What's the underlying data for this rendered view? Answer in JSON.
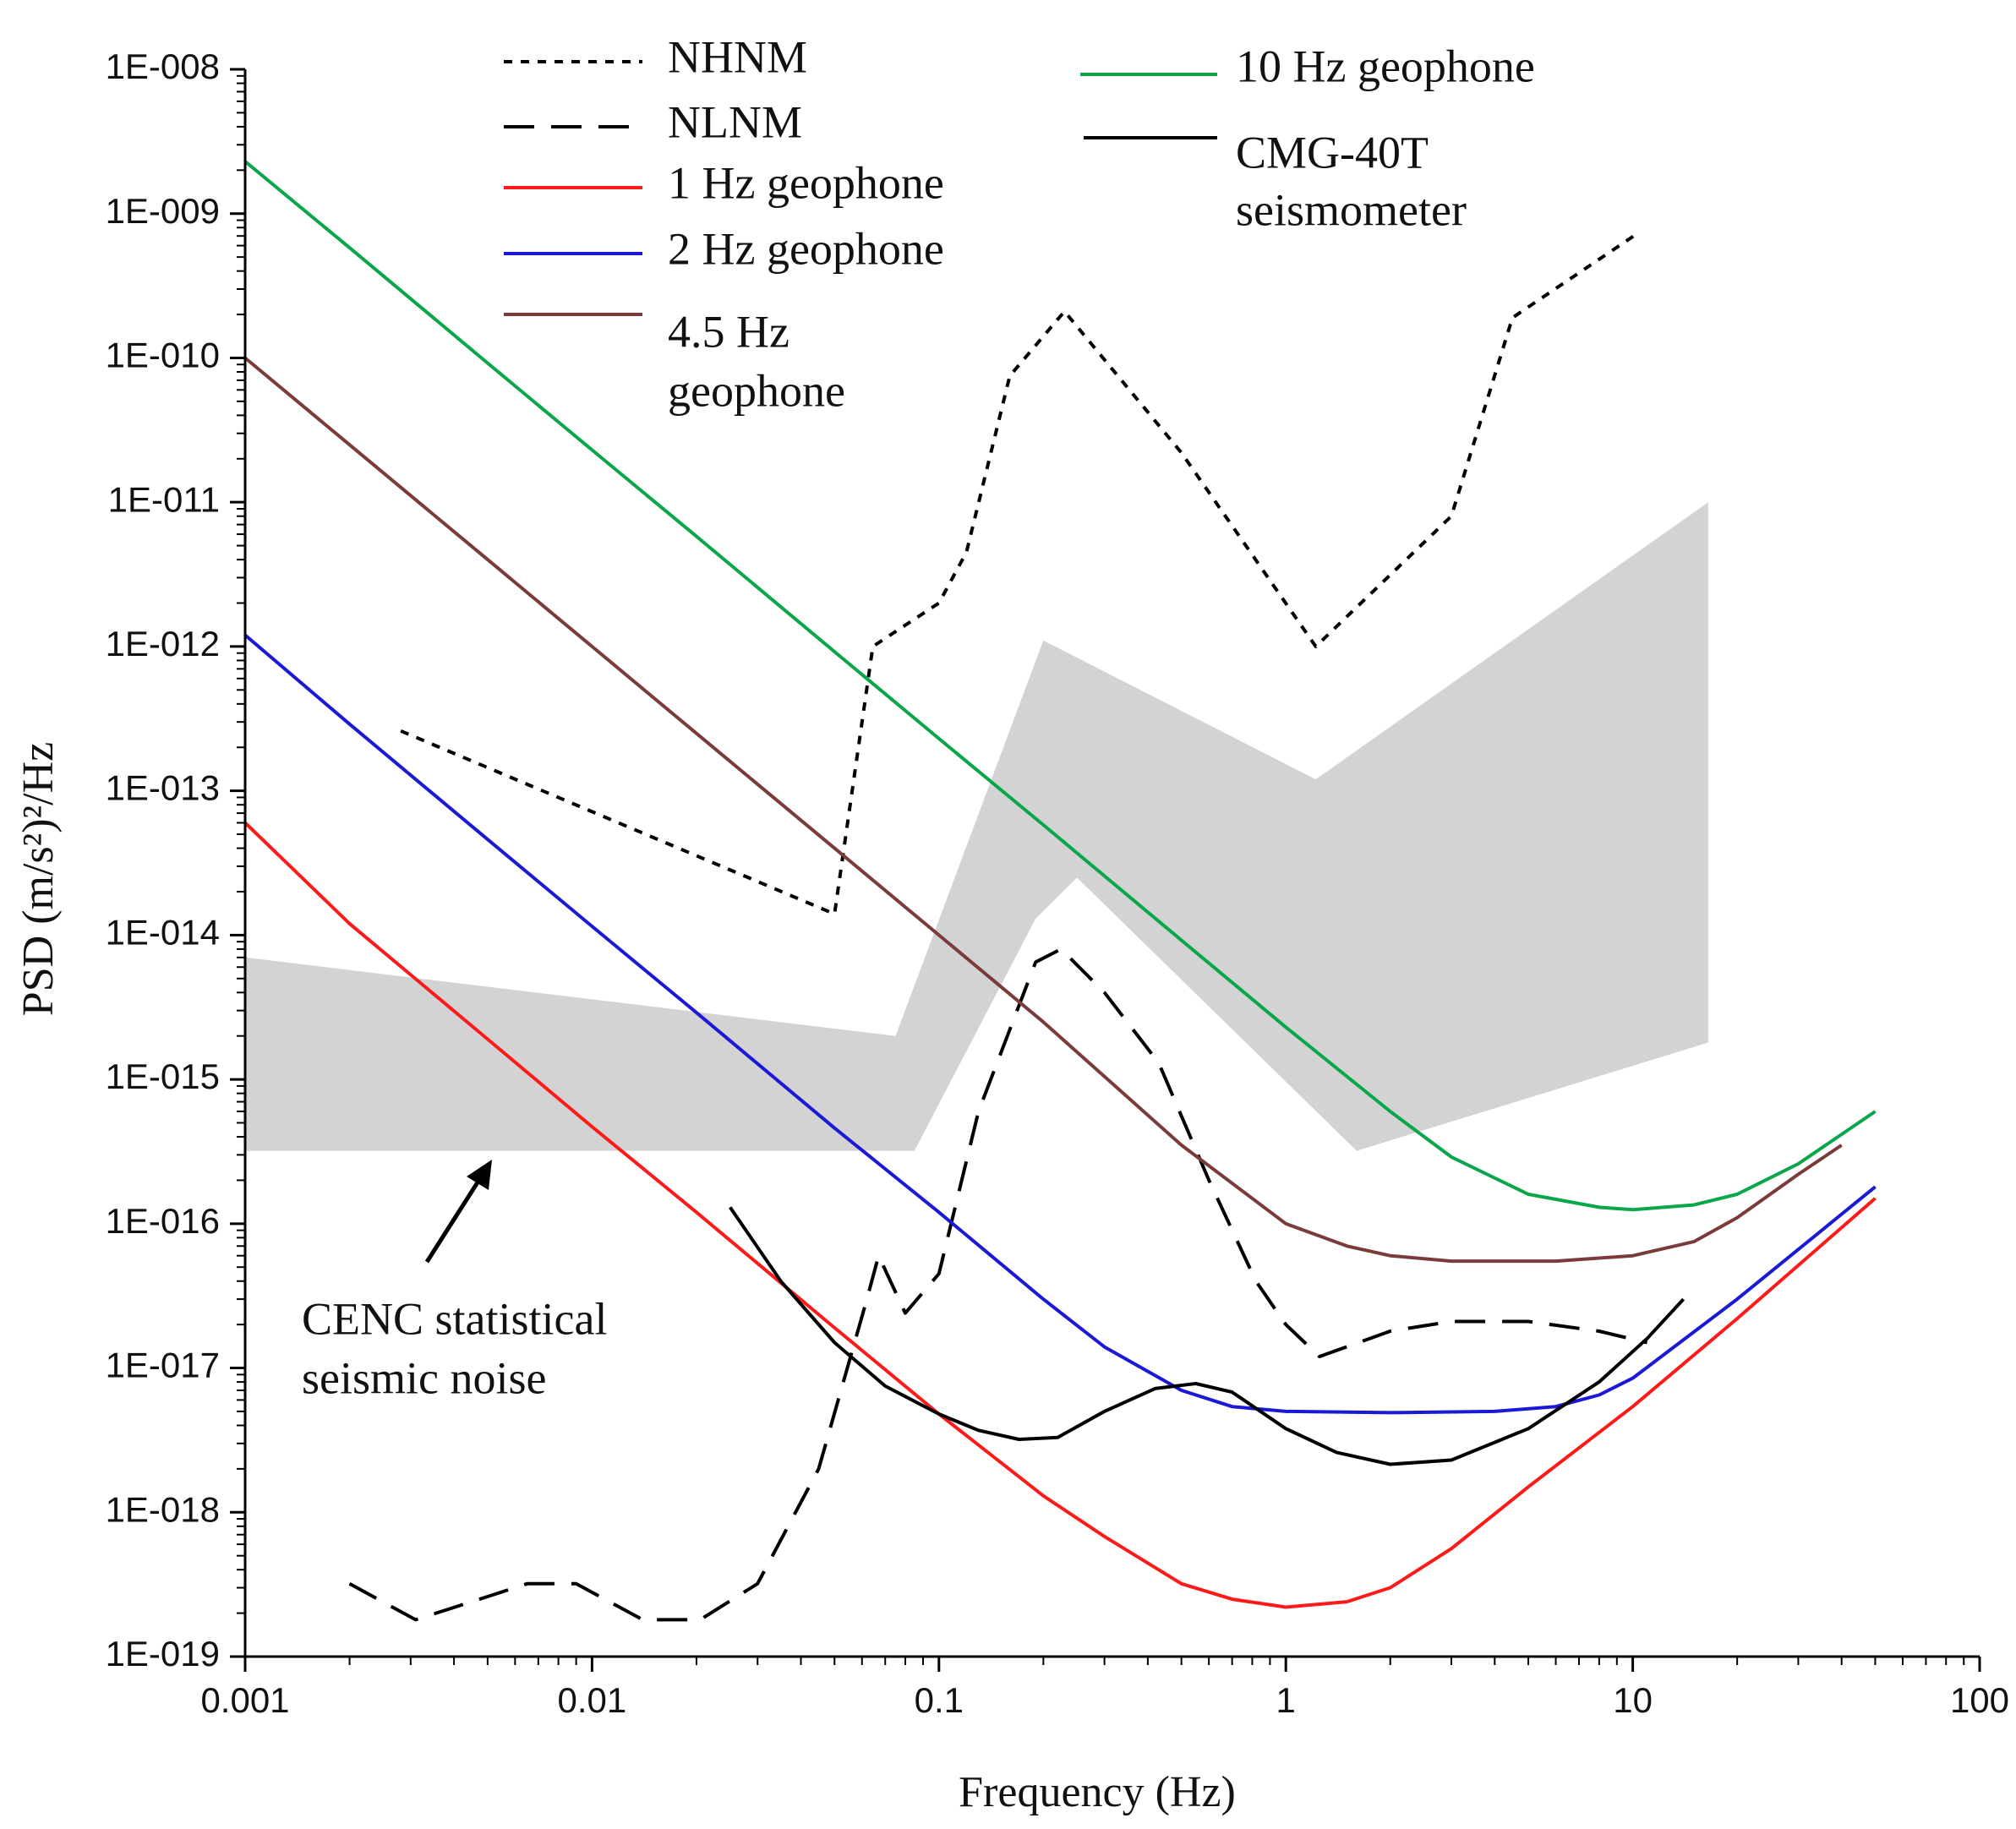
{
  "chart_data": {
    "type": "line",
    "xlabel": "Frequency (Hz)",
    "ylabel": "PSD  (m/s²)²/Hz",
    "xscale": "log",
    "yscale": "log",
    "xlim": [
      0.001,
      100
    ],
    "ylim": [
      1e-19,
      1e-08
    ],
    "x_ticks": [
      0.001,
      0.01,
      0.1,
      1,
      10,
      100
    ],
    "x_tick_labels": [
      "0.001",
      "0.01",
      "0.1",
      "1",
      "10",
      "100"
    ],
    "y_ticks": [
      1e-08,
      1e-09,
      1e-10,
      1e-11,
      1e-12,
      1e-13,
      1e-14,
      1e-15,
      1e-16,
      1e-17,
      1e-18,
      1e-19
    ],
    "y_tick_labels": [
      "1E-008",
      "1E-009",
      "1E-010",
      "1E-011",
      "1E-012",
      "1E-013",
      "1E-014",
      "1E-015",
      "1E-016",
      "1E-017",
      "1E-018",
      "1E-019"
    ],
    "grid": false,
    "series": [
      {
        "name": "NHNM",
        "color": "#000000",
        "style": "dotted",
        "points": [
          [
            0.00281,
            2.6e-13
          ],
          [
            0.05,
            1.4e-14
          ],
          [
            0.0645,
            1e-12
          ],
          [
            0.1,
            2e-12
          ],
          [
            0.12,
            4.5e-12
          ],
          [
            0.16,
            7.5e-11
          ],
          [
            0.23,
            2.1e-10
          ],
          [
            0.5,
            2.2e-11
          ],
          [
            1.22,
            1e-12
          ],
          [
            3,
            8e-12
          ],
          [
            4.5,
            1.9e-10
          ],
          [
            10.5,
            7.5e-10
          ]
        ]
      },
      {
        "name": "NLNM",
        "color": "#000000",
        "style": "dashed",
        "points": [
          [
            0.002,
            3.2e-19
          ],
          [
            0.0031,
            1.8e-19
          ],
          [
            0.0045,
            2.4e-19
          ],
          [
            0.0065,
            3.2e-19
          ],
          [
            0.009,
            3.2e-19
          ],
          [
            0.014,
            1.8e-19
          ],
          [
            0.0205,
            1.8e-19
          ],
          [
            0.03,
            3.2e-19
          ],
          [
            0.045,
            2e-18
          ],
          [
            0.062,
            3e-17
          ],
          [
            0.067,
            6e-17
          ],
          [
            0.08,
            2.4e-17
          ],
          [
            0.1,
            4.5e-17
          ],
          [
            0.13,
            6e-16
          ],
          [
            0.19,
            6.5e-15
          ],
          [
            0.225,
            8e-15
          ],
          [
            0.3,
            4e-15
          ],
          [
            0.43,
            1.3e-15
          ],
          [
            0.6,
            2e-16
          ],
          [
            0.82,
            4e-17
          ],
          [
            1.0,
            2e-17
          ],
          [
            1.25,
            1.2e-17
          ],
          [
            2,
            1.8e-17
          ],
          [
            3,
            2.1e-17
          ],
          [
            5,
            2.1e-17
          ],
          [
            8,
            1.8e-17
          ],
          [
            11,
            1.5e-17
          ]
        ]
      },
      {
        "name": "1 Hz geophone",
        "color": "#ff1a1a",
        "style": "solid",
        "points": [
          [
            0.001,
            6e-14
          ],
          [
            0.002,
            1.2e-14
          ],
          [
            0.005,
            1.9e-15
          ],
          [
            0.01,
            4.7e-16
          ],
          [
            0.02,
            1.2e-16
          ],
          [
            0.05,
            1.9e-17
          ],
          [
            0.1,
            4.8e-18
          ],
          [
            0.2,
            1.3e-18
          ],
          [
            0.3,
            6.8e-19
          ],
          [
            0.5,
            3.2e-19
          ],
          [
            0.7,
            2.5e-19
          ],
          [
            1.0,
            2.2e-19
          ],
          [
            1.5,
            2.4e-19
          ],
          [
            2.0,
            3e-19
          ],
          [
            3.0,
            5.6e-19
          ],
          [
            5.0,
            1.5e-18
          ],
          [
            10,
            5.4e-18
          ],
          [
            20,
            2.2e-17
          ],
          [
            50,
            1.5e-16
          ]
        ]
      },
      {
        "name": "2 Hz geophone",
        "color": "#1a1ad6",
        "style": "solid",
        "points": [
          [
            0.001,
            1.2e-12
          ],
          [
            0.002,
            2.9e-13
          ],
          [
            0.005,
            4.6e-14
          ],
          [
            0.01,
            1.15e-14
          ],
          [
            0.02,
            2.9e-15
          ],
          [
            0.05,
            4.6e-16
          ],
          [
            0.1,
            1.2e-16
          ],
          [
            0.2,
            3e-17
          ],
          [
            0.3,
            1.4e-17
          ],
          [
            0.5,
            7e-18
          ],
          [
            0.7,
            5.4e-18
          ],
          [
            1.0,
            5e-18
          ],
          [
            2.0,
            4.9e-18
          ],
          [
            4.0,
            5e-18
          ],
          [
            6.0,
            5.4e-18
          ],
          [
            8.0,
            6.5e-18
          ],
          [
            10,
            8.5e-18
          ],
          [
            20,
            3e-17
          ],
          [
            50,
            1.8e-16
          ]
        ]
      },
      {
        "name": "4.5 Hz geophone",
        "color": "#7a3b3b",
        "style": "solid",
        "points": [
          [
            0.001,
            1e-10
          ],
          [
            0.002,
            2.5e-11
          ],
          [
            0.005,
            4e-12
          ],
          [
            0.01,
            1e-12
          ],
          [
            0.02,
            2.5e-13
          ],
          [
            0.05,
            4e-14
          ],
          [
            0.1,
            1e-14
          ],
          [
            0.2,
            2.5e-15
          ],
          [
            0.5,
            3.5e-16
          ],
          [
            1.0,
            1e-16
          ],
          [
            1.5,
            7e-17
          ],
          [
            2.0,
            6e-17
          ],
          [
            3.0,
            5.5e-17
          ],
          [
            6.0,
            5.5e-17
          ],
          [
            10,
            6e-17
          ],
          [
            15,
            7.5e-17
          ],
          [
            20,
            1.1e-16
          ],
          [
            30,
            2.2e-16
          ],
          [
            40,
            3.5e-16
          ]
        ]
      },
      {
        "name": "10 Hz geophone",
        "color": "#0aa64a",
        "style": "solid",
        "points": [
          [
            0.001,
            2.3e-09
          ],
          [
            0.002,
            5.8e-10
          ],
          [
            0.005,
            9.2e-11
          ],
          [
            0.01,
            2.3e-11
          ],
          [
            0.02,
            5.8e-12
          ],
          [
            0.05,
            9.2e-13
          ],
          [
            0.1,
            2.3e-13
          ],
          [
            0.2,
            5.8e-14
          ],
          [
            0.5,
            9.2e-15
          ],
          [
            1.0,
            2.3e-15
          ],
          [
            2.0,
            6e-16
          ],
          [
            3.0,
            2.9e-16
          ],
          [
            5.0,
            1.6e-16
          ],
          [
            8.0,
            1.3e-16
          ],
          [
            10,
            1.25e-16
          ],
          [
            15,
            1.35e-16
          ],
          [
            20,
            1.6e-16
          ],
          [
            30,
            2.6e-16
          ],
          [
            50,
            6e-16
          ]
        ]
      },
      {
        "name": "CMG-40T seismometer",
        "color": "#000000",
        "style": "solid",
        "points": [
          [
            0.025,
            1.3e-16
          ],
          [
            0.035,
            4e-17
          ],
          [
            0.05,
            1.5e-17
          ],
          [
            0.07,
            7.5e-18
          ],
          [
            0.1,
            4.8e-18
          ],
          [
            0.13,
            3.7e-18
          ],
          [
            0.17,
            3.2e-18
          ],
          [
            0.22,
            3.3e-18
          ],
          [
            0.3,
            5e-18
          ],
          [
            0.42,
            7.2e-18
          ],
          [
            0.55,
            7.8e-18
          ],
          [
            0.7,
            6.8e-18
          ],
          [
            1.0,
            3.8e-18
          ],
          [
            1.4,
            2.6e-18
          ],
          [
            2.0,
            2.15e-18
          ],
          [
            3.0,
            2.3e-18
          ],
          [
            5.0,
            3.8e-18
          ],
          [
            8.0,
            8e-18
          ],
          [
            11,
            1.6e-17
          ],
          [
            14,
            3e-17
          ]
        ]
      }
    ],
    "shaded_region": {
      "name": "CENC statistical seismic noise",
      "color": "#d3d3d3",
      "upper": [
        [
          0.001,
          7e-15
        ],
        [
          0.075,
          2e-15
        ],
        [
          0.2,
          1.1e-12
        ],
        [
          1.22,
          1.2e-13
        ],
        [
          16.5,
          1e-11
        ]
      ],
      "lower": [
        [
          0.001,
          3.2e-16
        ],
        [
          0.085,
          3.2e-16
        ],
        [
          0.19,
          1.3e-14
        ],
        [
          0.25,
          2.5e-14
        ],
        [
          1.6,
          3.2e-16
        ],
        [
          16.5,
          1.8e-15
        ]
      ]
    },
    "legend": {
      "placement": "top",
      "entries": [
        "NHNM",
        "NLNM",
        "1 Hz geophone",
        "2 Hz geophone",
        "4.5 Hz geophone",
        "10 Hz geophone",
        "CMG-40T seismometer"
      ]
    },
    "legend_labels": {
      "nhnm": "NHNM",
      "nlnm": "NLNM",
      "geo1": "1 Hz geophone",
      "geo2": "2 Hz geophone",
      "geo45_line1": "4.5 Hz",
      "geo45_line2": "geophone",
      "geo10": "10 Hz geophone",
      "cmg_line1": "CMG-40T",
      "cmg_line2": "seismometer"
    },
    "annotations": {
      "cenc_line1": "CENC statistical",
      "cenc_line2": "seismic noise"
    }
  }
}
